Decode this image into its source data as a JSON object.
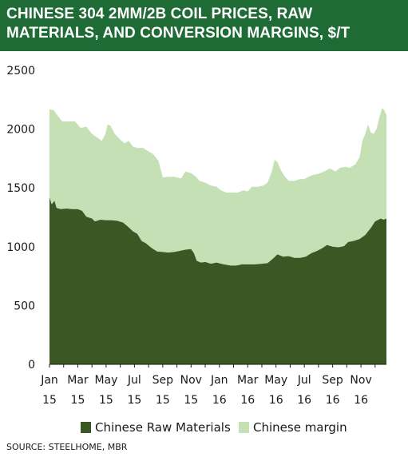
{
  "header": {
    "title": "CHINESE 304 2MM/2B COIL PRICES, RAW MATERIALS, AND CONVERSION MARGINS, $/T"
  },
  "source": "SOURCE: STEELHOME, MBR",
  "colors": {
    "header_bg": "#1e6b35",
    "raw_materials": "#3b5723",
    "margin": "#c5e0b5"
  },
  "chart_data": {
    "type": "area",
    "stacked": true,
    "title": "CHINESE 304 2MM/2B COIL PRICES, RAW MATERIALS, AND CONVERSION MARGINS, $/T",
    "xlabel": "",
    "ylabel": "",
    "ylim": [
      0,
      2500
    ],
    "yticks": [
      0,
      500,
      1000,
      1500,
      2000,
      2500
    ],
    "xticks": [
      {
        "month": 0,
        "label": [
          "Jan",
          "15"
        ]
      },
      {
        "month": 2,
        "label": [
          "Mar",
          "15"
        ]
      },
      {
        "month": 4,
        "label": [
          "May",
          "15"
        ]
      },
      {
        "month": 6,
        "label": [
          "Jul",
          "15"
        ]
      },
      {
        "month": 8,
        "label": [
          "Sep",
          "15"
        ]
      },
      {
        "month": 10,
        "label": [
          "Nov",
          "15"
        ]
      },
      {
        "month": 12,
        "label": [
          "Jan",
          "16"
        ]
      },
      {
        "month": 14,
        "label": [
          "Mar",
          "16"
        ]
      },
      {
        "month": 16,
        "label": [
          "May",
          "16"
        ]
      },
      {
        "month": 18,
        "label": [
          "Jul",
          "16"
        ]
      },
      {
        "month": 20,
        "label": [
          "Sep",
          "16"
        ]
      },
      {
        "month": 22,
        "label": [
          "Nov",
          "16"
        ]
      }
    ],
    "x_units": "months since Jan 2015",
    "xlim": [
      0,
      23.8
    ],
    "grid": false,
    "legend_position": "bottom",
    "series": [
      {
        "name": "Chinese Raw Materials",
        "color": "#3b5723",
        "points": [
          [
            0,
            1420
          ],
          [
            0.15,
            1360
          ],
          [
            0.35,
            1390
          ],
          [
            0.5,
            1330
          ],
          [
            0.8,
            1320
          ],
          [
            1.2,
            1325
          ],
          [
            1.6,
            1320
          ],
          [
            2.0,
            1320
          ],
          [
            2.3,
            1305
          ],
          [
            2.6,
            1255
          ],
          [
            3.0,
            1240
          ],
          [
            3.2,
            1215
          ],
          [
            3.6,
            1230
          ],
          [
            4.0,
            1225
          ],
          [
            4.4,
            1225
          ],
          [
            4.8,
            1220
          ],
          [
            5.2,
            1205
          ],
          [
            5.5,
            1175
          ],
          [
            5.9,
            1130
          ],
          [
            6.2,
            1110
          ],
          [
            6.5,
            1050
          ],
          [
            6.8,
            1030
          ],
          [
            7.2,
            990
          ],
          [
            7.6,
            960
          ],
          [
            8.0,
            955
          ],
          [
            8.4,
            950
          ],
          [
            8.8,
            955
          ],
          [
            9.2,
            965
          ],
          [
            9.6,
            975
          ],
          [
            10.0,
            980
          ],
          [
            10.2,
            945
          ],
          [
            10.4,
            880
          ],
          [
            10.7,
            865
          ],
          [
            11.0,
            870
          ],
          [
            11.4,
            855
          ],
          [
            11.8,
            865
          ],
          [
            12.3,
            850
          ],
          [
            12.8,
            840
          ],
          [
            13.2,
            840
          ],
          [
            13.6,
            850
          ],
          [
            14.0,
            850
          ],
          [
            14.5,
            850
          ],
          [
            15.0,
            855
          ],
          [
            15.4,
            860
          ],
          [
            15.8,
            900
          ],
          [
            16.1,
            935
          ],
          [
            16.5,
            915
          ],
          [
            16.9,
            920
          ],
          [
            17.3,
            905
          ],
          [
            17.7,
            905
          ],
          [
            18.1,
            915
          ],
          [
            18.5,
            945
          ],
          [
            18.9,
            965
          ],
          [
            19.3,
            990
          ],
          [
            19.6,
            1015
          ],
          [
            20.0,
            1000
          ],
          [
            20.4,
            995
          ],
          [
            20.8,
            1005
          ],
          [
            21.1,
            1040
          ],
          [
            21.5,
            1050
          ],
          [
            21.9,
            1065
          ],
          [
            22.3,
            1100
          ],
          [
            22.7,
            1160
          ],
          [
            23.0,
            1215
          ],
          [
            23.4,
            1240
          ],
          [
            23.6,
            1230
          ],
          [
            23.8,
            1240
          ]
        ]
      },
      {
        "name": "Chinese margin",
        "color": "#c5e0b5",
        "total_points": [
          [
            0,
            2170
          ],
          [
            0.3,
            2160
          ],
          [
            0.6,
            2110
          ],
          [
            0.9,
            2065
          ],
          [
            1.3,
            2065
          ],
          [
            1.8,
            2065
          ],
          [
            2.2,
            2010
          ],
          [
            2.6,
            2020
          ],
          [
            3.0,
            1960
          ],
          [
            3.4,
            1925
          ],
          [
            3.7,
            1900
          ],
          [
            3.95,
            1960
          ],
          [
            4.1,
            2040
          ],
          [
            4.3,
            2030
          ],
          [
            4.6,
            1960
          ],
          [
            5.0,
            1910
          ],
          [
            5.3,
            1880
          ],
          [
            5.6,
            1900
          ],
          [
            5.9,
            1850
          ],
          [
            6.2,
            1840
          ],
          [
            6.6,
            1840
          ],
          [
            7.0,
            1810
          ],
          [
            7.3,
            1790
          ],
          [
            7.7,
            1730
          ],
          [
            8.0,
            1590
          ],
          [
            8.4,
            1595
          ],
          [
            8.8,
            1595
          ],
          [
            9.3,
            1580
          ],
          [
            9.6,
            1640
          ],
          [
            10.0,
            1625
          ],
          [
            10.3,
            1600
          ],
          [
            10.6,
            1560
          ],
          [
            11.0,
            1545
          ],
          [
            11.4,
            1520
          ],
          [
            11.8,
            1510
          ],
          [
            12.1,
            1480
          ],
          [
            12.5,
            1460
          ],
          [
            12.9,
            1460
          ],
          [
            13.3,
            1460
          ],
          [
            13.7,
            1480
          ],
          [
            14.0,
            1470
          ],
          [
            14.3,
            1510
          ],
          [
            14.7,
            1510
          ],
          [
            15.1,
            1520
          ],
          [
            15.4,
            1545
          ],
          [
            15.7,
            1640
          ],
          [
            15.9,
            1740
          ],
          [
            16.1,
            1720
          ],
          [
            16.3,
            1660
          ],
          [
            16.6,
            1600
          ],
          [
            16.9,
            1560
          ],
          [
            17.3,
            1560
          ],
          [
            17.7,
            1575
          ],
          [
            18.0,
            1575
          ],
          [
            18.3,
            1595
          ],
          [
            18.6,
            1610
          ],
          [
            19.0,
            1620
          ],
          [
            19.4,
            1640
          ],
          [
            19.8,
            1665
          ],
          [
            20.2,
            1640
          ],
          [
            20.5,
            1670
          ],
          [
            20.9,
            1680
          ],
          [
            21.2,
            1670
          ],
          [
            21.6,
            1700
          ],
          [
            21.9,
            1760
          ],
          [
            22.1,
            1900
          ],
          [
            22.3,
            1960
          ],
          [
            22.5,
            2040
          ],
          [
            22.7,
            1970
          ],
          [
            22.9,
            1960
          ],
          [
            23.1,
            2000
          ],
          [
            23.3,
            2100
          ],
          [
            23.5,
            2180
          ],
          [
            23.65,
            2160
          ],
          [
            23.8,
            2120
          ]
        ]
      }
    ]
  },
  "legend": [
    {
      "label": "Chinese Raw Materials",
      "color": "#3b5723"
    },
    {
      "label": "Chinese margin",
      "color": "#c5e0b5"
    }
  ]
}
